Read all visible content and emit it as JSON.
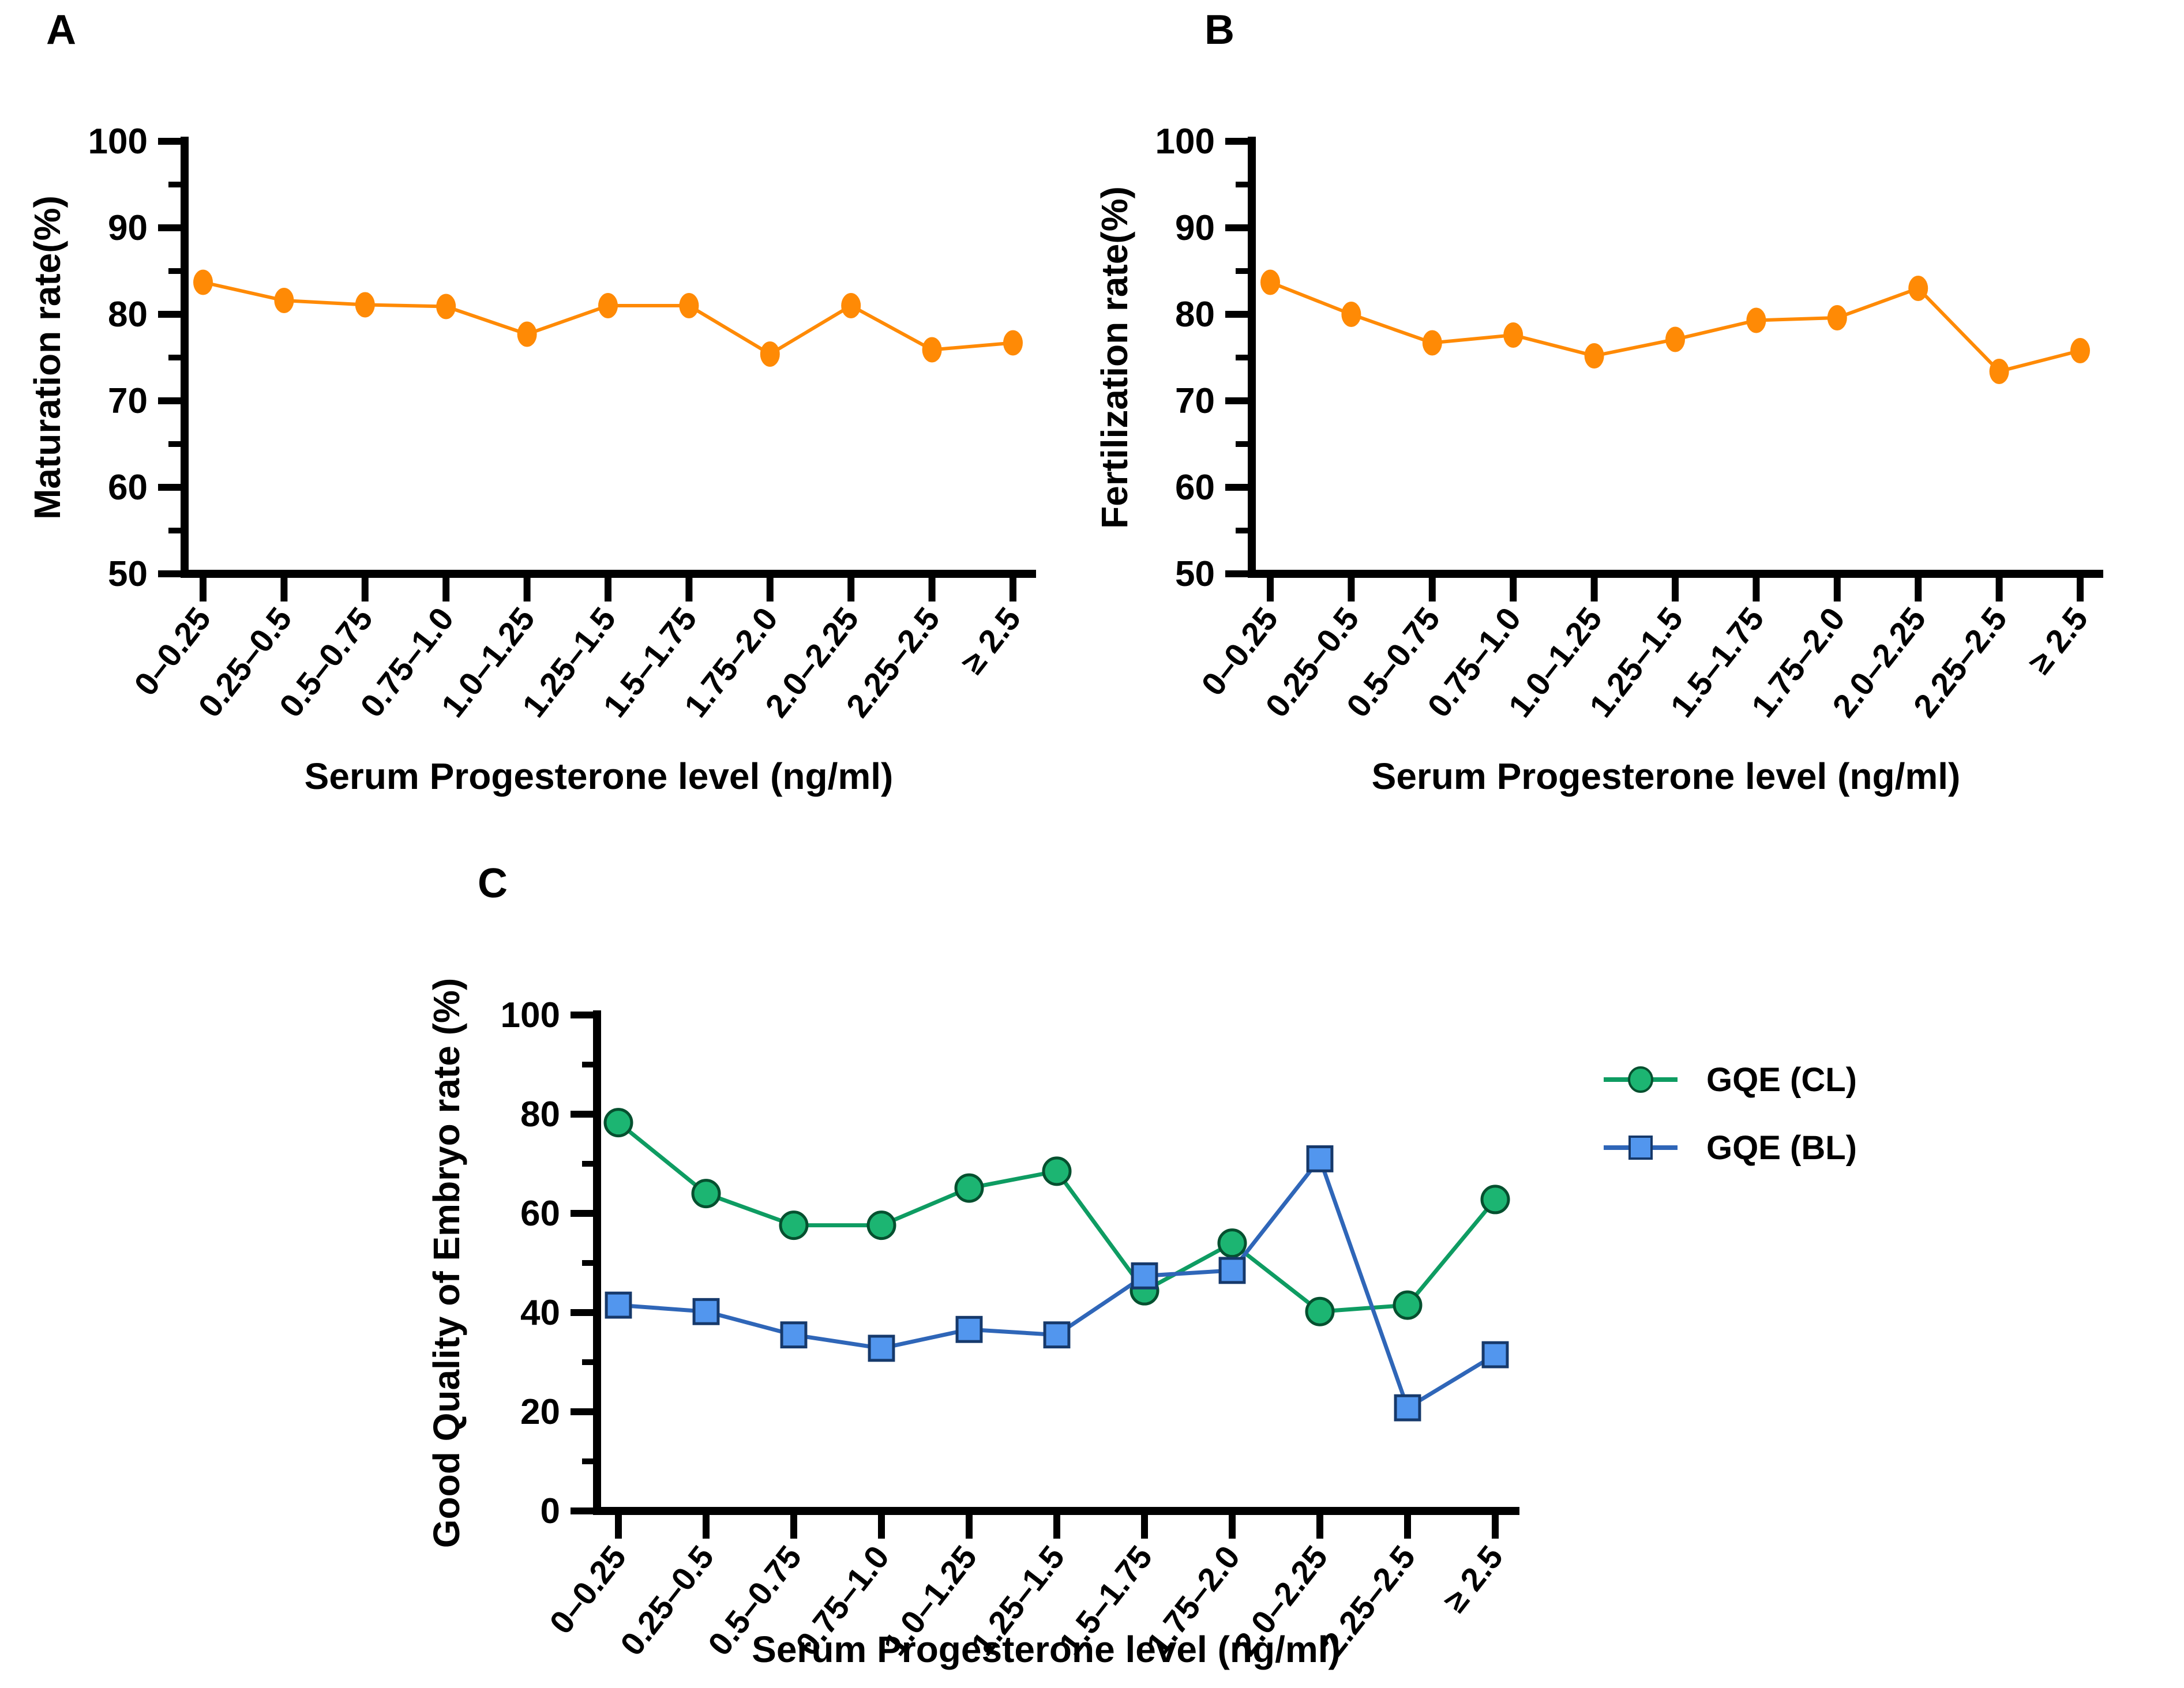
{
  "panel_labels": {
    "a": "A",
    "b": "B",
    "c": "C"
  },
  "colors": {
    "orange": "#FF8A05",
    "green_fill": "#1CB572",
    "green_line": "#0E9C62",
    "green_edge": "#05502F",
    "blue_fill": "#5296EE",
    "blue_line": "#2F66B8",
    "blue_edge": "#16396B",
    "axis_black": "#000000"
  },
  "chart_data": [
    {
      "type": "line",
      "panel": "A",
      "title": "",
      "xlabel": "Serum Progesterone level (ng/ml)",
      "ylabel": "Maturation rate(%)",
      "ylim": [
        50,
        100
      ],
      "yticks": [
        50,
        60,
        70,
        80,
        90,
        100
      ],
      "minor_ticks": true,
      "grid": false,
      "legend_position": "none",
      "categories": [
        "0–0.25",
        "0.25–0.5",
        "0.5–0.75",
        "0.75–1.0",
        "1.0–1.25",
        "1.25–1.5",
        "1.5–1.75",
        "1.75–2.0",
        "2.0–2.25",
        "2.25–2.5",
        "≥ 2.5"
      ],
      "series": [
        {
          "name": "Maturation rate",
          "marker": "circle",
          "color": "#FF8A05",
          "line_color": "#FF8A05",
          "edge_color": "#FF8A05",
          "values": [
            83.7,
            81.6,
            81.1,
            80.9,
            77.7,
            81.0,
            81.0,
            75.4,
            81.0,
            75.9,
            76.7
          ]
        }
      ]
    },
    {
      "type": "line",
      "panel": "B",
      "title": "",
      "xlabel": "Serum Progesterone level (ng/ml)",
      "ylabel": "Fertilization rate(%)",
      "ylim": [
        50,
        100
      ],
      "yticks": [
        50,
        60,
        70,
        80,
        90,
        100
      ],
      "minor_ticks": true,
      "grid": false,
      "legend_position": "none",
      "categories": [
        "0–0.25",
        "0.25–0.5",
        "0.5–0.75",
        "0.75–1.0",
        "1.0–1.25",
        "1.25–1.5",
        "1.5–1.75",
        "1.75–2.0",
        "2.0–2.25",
        "2.25–2.5",
        "≥ 2.5"
      ],
      "series": [
        {
          "name": "Fertilization rate",
          "marker": "circle",
          "color": "#FF8A05",
          "line_color": "#FF8A05",
          "edge_color": "#FF8A05",
          "values": [
            83.7,
            80.0,
            76.7,
            77.6,
            75.2,
            77.1,
            79.3,
            79.6,
            83.0,
            73.4,
            75.8
          ]
        }
      ]
    },
    {
      "type": "line",
      "panel": "C",
      "title": "",
      "xlabel": "Serum Progesterone level (ng/ml)",
      "ylabel": "Good Quality of Embryo rate (%)",
      "ylim": [
        0,
        100
      ],
      "yticks": [
        0,
        20,
        40,
        60,
        80,
        100
      ],
      "minor_ticks": true,
      "grid": false,
      "legend_position": "right",
      "categories": [
        "0–0.25",
        "0.25–0.5",
        "0.5–0.75",
        "0.75–1.0",
        "1.0–1.25",
        "1.25–1.5",
        "1.5–1.75",
        "1.75–2.0",
        "2.0–2.25",
        "2.25–2.5",
        "≥ 2.5"
      ],
      "series": [
        {
          "name": "GQE (CL)",
          "marker": "circle",
          "color": "#1CB572",
          "line_color": "#0E9C62",
          "edge_color": "#05502F",
          "values": [
            78.3,
            64.0,
            57.6,
            57.6,
            65.1,
            68.5,
            44.4,
            54.0,
            40.2,
            41.5,
            62.8
          ]
        },
        {
          "name": "GQE (BL)",
          "marker": "square",
          "color": "#5296EE",
          "line_color": "#2F66B8",
          "edge_color": "#16396B",
          "values": [
            41.5,
            40.2,
            35.5,
            32.8,
            36.6,
            35.5,
            47.4,
            48.5,
            71.0,
            20.8,
            31.5
          ]
        }
      ]
    }
  ]
}
